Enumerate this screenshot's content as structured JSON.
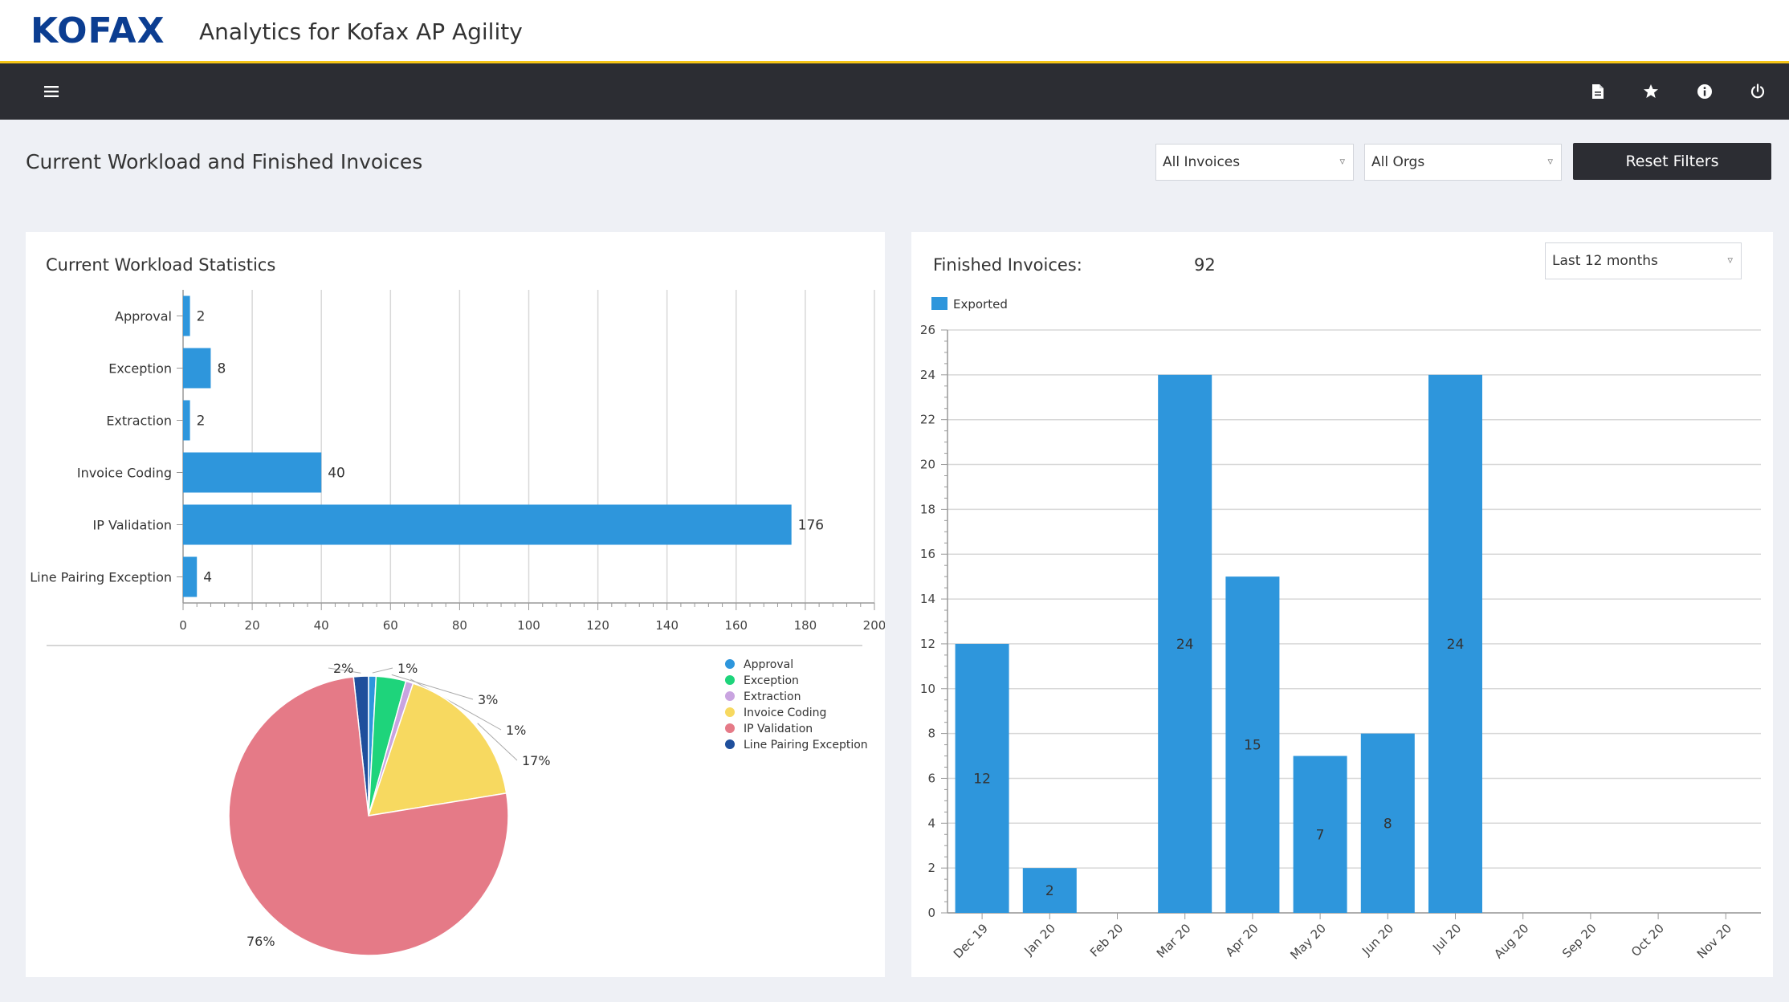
{
  "header": {
    "logo": "KOFAX",
    "app_title": "Analytics for Kofax AP Agility"
  },
  "navbar": {
    "icons": [
      "menu-icon",
      "document-icon",
      "star-icon",
      "info-icon",
      "power-icon"
    ]
  },
  "filters": {
    "page_title": "Current Workload and Finished Invoices",
    "invoices_select": "All Invoices",
    "orgs_select": "All Orgs",
    "reset_label": "Reset Filters"
  },
  "workload": {
    "title": "Current Workload Statistics"
  },
  "finished": {
    "title": "Finished Invoices:",
    "total": "92",
    "period_select": "Last 12 months"
  },
  "colors": {
    "bar": "#2e96dc",
    "accent": "#f5c518",
    "navbar": "#2c2d33"
  },
  "chart_data": [
    {
      "type": "bar",
      "orientation": "horizontal",
      "categories": [
        "Approval",
        "Exception",
        "Extraction",
        "Invoice Coding",
        "IP Validation",
        "Line Pairing Exception"
      ],
      "values": [
        2,
        8,
        2,
        40,
        176,
        4
      ],
      "xlim": [
        0,
        200
      ],
      "xticks": [
        0,
        20,
        40,
        60,
        80,
        100,
        120,
        140,
        160,
        180,
        200
      ],
      "grid": true
    },
    {
      "type": "pie",
      "labels": [
        "Approval",
        "Exception",
        "Extraction",
        "Invoice Coding",
        "IP Validation",
        "Line Pairing Exception"
      ],
      "values": [
        2,
        8,
        2,
        40,
        176,
        4
      ],
      "percent_labels": [
        "1%",
        "3%",
        "1%",
        "17%",
        "76%",
        "2%"
      ],
      "colors": [
        "#2e96dc",
        "#1ed47b",
        "#c9a4e0",
        "#f7d960",
        "#e57a87",
        "#1f4f9c"
      ],
      "legend": "top-right"
    },
    {
      "type": "bar",
      "categories": [
        "Dec 19",
        "Jan 20",
        "Feb 20",
        "Mar 20",
        "Apr 20",
        "May 20",
        "Jun 20",
        "Jul 20",
        "Aug 20",
        "Sep 20",
        "Oct 20",
        "Nov 20"
      ],
      "series": [
        {
          "name": "Exported",
          "values": [
            12,
            2,
            0,
            24,
            15,
            7,
            8,
            24,
            0,
            0,
            0,
            0
          ]
        }
      ],
      "ylim": [
        0,
        26
      ],
      "yticks": [
        0,
        2,
        4,
        6,
        8,
        10,
        12,
        14,
        16,
        18,
        20,
        22,
        24,
        26
      ],
      "grid": true,
      "legend": "top-left"
    }
  ]
}
